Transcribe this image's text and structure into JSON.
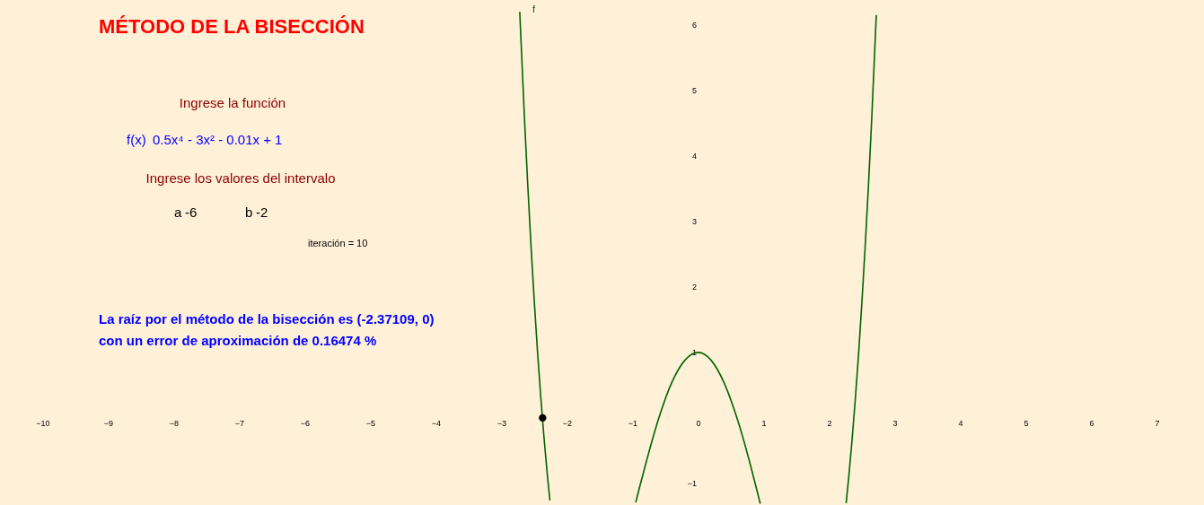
{
  "chart_data": {
    "type": "line",
    "title": "MÉTODO DE LA BISECCIÓN",
    "annotations": [
      "Ingrese la función",
      "f(x)",
      "0.5x⁴ - 3x² - 0.01x + 1",
      "Ingrese los valores del intervalo",
      "a",
      "-6",
      "b",
      "-2",
      "iteración = 10",
      "La raíz por el método de la bisección es (-2.37109, 0)",
      "con un error de aproximación de 0.16474 %"
    ],
    "series": [
      {
        "name": "f",
        "color": "#006400",
        "type": "line",
        "x": [
          -2.72,
          -2.65,
          -2.6,
          -2.55,
          -2.5,
          -2.45,
          -2.4,
          -2.35,
          -2.3,
          -2.26,
          -1.1,
          -0.95,
          -0.9,
          -0.8,
          -0.6,
          -0.4,
          -0.2,
          0,
          0.2,
          0.4,
          0.6,
          0.8,
          0.9,
          0.95,
          1.6,
          2.26,
          2.3,
          2.35,
          2.4,
          2.45,
          2.5,
          2.55,
          2.6,
          2.65,
          2.72
        ],
        "values": [
          6.2,
          4.62,
          3.6,
          2.66,
          1.81,
          1.03,
          0.33,
          -0.3,
          -0.86,
          -1.26,
          null,
          -1.29,
          -1.09,
          -0.71,
          -0.01,
          0.54,
          0.88,
          1,
          0.88,
          0.53,
          -0.02,
          -0.72,
          -1.11,
          -1.31,
          null,
          -1.3,
          -0.9,
          -0.34,
          0.29,
          0.98,
          1.76,
          2.61,
          3.54,
          4.56,
          6.15
        ]
      },
      {
        "color": "#000000",
        "type": "scatter",
        "marker": "circle",
        "x": [
          -2.37109
        ],
        "values": [
          0
        ]
      }
    ],
    "xlim": [
      -10.65,
      7.72
    ],
    "ylim": [
      -1.33,
      6.38
    ],
    "xticks": [
      -10,
      -9,
      -8,
      -7,
      -6,
      -5,
      -4,
      -3,
      -2,
      -1,
      0,
      1,
      2,
      3,
      4,
      5,
      6,
      7
    ],
    "yticks": [
      -1,
      1,
      2,
      3,
      4,
      5,
      6
    ],
    "grid": false
  }
}
